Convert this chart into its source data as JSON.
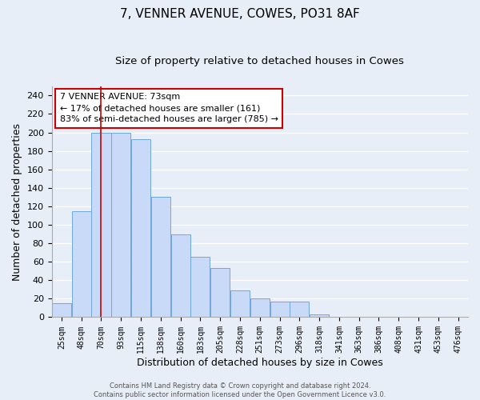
{
  "title": "7, VENNER AVENUE, COWES, PO31 8AF",
  "subtitle": "Size of property relative to detached houses in Cowes",
  "xlabel": "Distribution of detached houses by size in Cowes",
  "ylabel": "Number of detached properties",
  "categories": [
    "25sqm",
    "48sqm",
    "70sqm",
    "93sqm",
    "115sqm",
    "138sqm",
    "160sqm",
    "183sqm",
    "205sqm",
    "228sqm",
    "251sqm",
    "273sqm",
    "296sqm",
    "318sqm",
    "341sqm",
    "363sqm",
    "386sqm",
    "408sqm",
    "431sqm",
    "453sqm",
    "476sqm"
  ],
  "values": [
    15,
    115,
    200,
    200,
    193,
    130,
    90,
    65,
    53,
    29,
    20,
    17,
    17,
    3,
    0,
    0,
    0,
    0,
    0,
    0,
    0
  ],
  "bar_color": "#c9daf8",
  "bar_edge_color": "#6fa8dc",
  "vline_x": 2,
  "vline_color": "#cc0000",
  "annotation_text": "7 VENNER AVENUE: 73sqm\n← 17% of detached houses are smaller (161)\n83% of semi-detached houses are larger (785) →",
  "annotation_box_color": "#ffffff",
  "annotation_box_edge": "#cc0000",
  "ylim": [
    0,
    250
  ],
  "yticks": [
    0,
    20,
    40,
    60,
    80,
    100,
    120,
    140,
    160,
    180,
    200,
    220,
    240
  ],
  "background_color": "#e8eef8",
  "grid_color": "#ffffff",
  "footer": "Contains HM Land Registry data © Crown copyright and database right 2024.\nContains public sector information licensed under the Open Government Licence v3.0.",
  "title_fontsize": 11,
  "subtitle_fontsize": 9.5,
  "xlabel_fontsize": 9,
  "ylabel_fontsize": 9,
  "annotation_fontsize": 8,
  "footer_fontsize": 6
}
